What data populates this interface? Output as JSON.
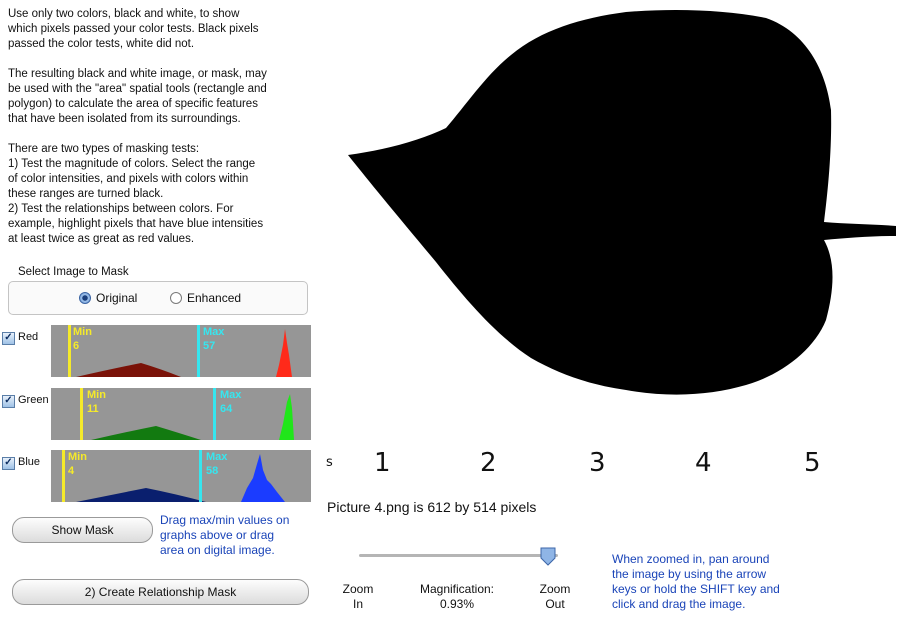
{
  "instructions": [
    "Use only two colors, black and white, to show\nwhich pixels passed your color tests.  Black pixels\npassed the color tests, white did not.",
    "The resulting black and white image, or mask, may\nbe used with the \"area\" spatial tools (rectangle and\npolygon) to calculate the area of specific features\nthat have been isolated from its surroundings.",
    "There are two types of masking tests:\n1) Test the magnitude of colors.  Select the range\nof color intensities, and pixels with colors within\nthese ranges are turned black.\n2) Test the relationships between colors.  For\nexample, highlight pixels that have blue intensities\nat least twice as great as red values."
  ],
  "select_image": {
    "label": "Select Image to Mask",
    "options": [
      {
        "label": "Original",
        "selected": true
      },
      {
        "label": "Enhanced",
        "selected": false
      }
    ]
  },
  "channels": [
    {
      "name": "Red",
      "checked": true,
      "min_label": "Min",
      "min": "6",
      "max_label": "Max",
      "max": "57",
      "color": "#ff2a1a",
      "dark": "#7a1208"
    },
    {
      "name": "Green",
      "checked": true,
      "min_label": "Min",
      "min": "11",
      "max_label": "Max",
      "max": "64",
      "color": "#20e61a",
      "dark": "#127a10"
    },
    {
      "name": "Blue",
      "checked": true,
      "min_label": "Min",
      "min": "4",
      "max_label": "Max",
      "max": "58",
      "color": "#1b3cff",
      "dark": "#0a1f6e"
    }
  ],
  "marker_colors": {
    "min": "#f5ea2a",
    "max": "#36e6ef"
  },
  "buttons": {
    "show_mask": "Show Mask",
    "relationship_mask": "2) Create Relationship Mask"
  },
  "hints": {
    "drag": "Drag max/min values on\ngraphs above or drag\narea on digital image.",
    "zoom": "When zoomed in, pan around\nthe image by using the arrow\nkeys or hold the SHIFT key and\nclick and drag the image."
  },
  "ruler_labels": [
    "s",
    "1",
    "2",
    "3",
    "4",
    "5"
  ],
  "caption": "Picture 4.png is 612 by 514 pixels",
  "zoom": {
    "in_label": "Zoom\nIn",
    "out_label": "Zoom\nOut",
    "magnification_label": "Magnification:",
    "magnification_value": "0.93%"
  },
  "accent_color": "#1a44b8"
}
